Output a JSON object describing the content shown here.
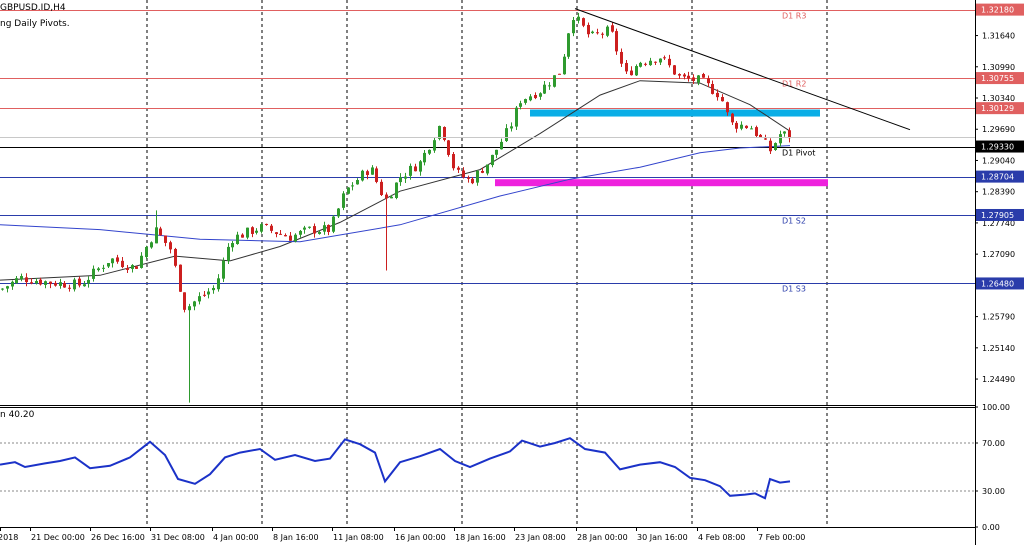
{
  "info": {
    "symbol": "GBPUSD.ID,H4",
    "indicator": "ng Daily Pivots.",
    "rsi_label": "n 40.20"
  },
  "colors": {
    "background": "#ffffff",
    "bull_candle": "#2e9a2e",
    "bear_candle": "#cc1f1f",
    "resistance": "#e06060",
    "support": "#2a3caa",
    "pivot": "#000000",
    "ma_fast": "#333333",
    "ma_slow": "#3344cc",
    "rsi_line": "#1b32c8",
    "zone_resistance": "#0aaee6",
    "zone_support": "#ee22dd",
    "grid": "#000000",
    "trendline": "#000000",
    "label_box": "#000000"
  },
  "chart_data": [
    {
      "type": "candlestick",
      "title": "GBPUSD.ID,H4",
      "ylim": [
        1.2395,
        1.3238
      ],
      "y_ticks": [
        "1.32180",
        "1.31640",
        "1.30990",
        "1.30340",
        "1.29690",
        "1.29040",
        "1.28390",
        "1.27740",
        "1.27090",
        "1.26440",
        "1.25790",
        "1.25140",
        "1.24490"
      ],
      "x_ticks": [
        "2018",
        "21 Dec 00:00",
        "26 Dec 16:00",
        "31 Dec 08:00",
        "4 Jan 00:00",
        "8 Jan 16:00",
        "11 Jan 08:00",
        "16 Jan 00:00",
        "18 Jan 16:00",
        "23 Jan 08:00",
        "28 Jan 00:00",
        "30 Jan 16:00",
        "4 Feb 08:00",
        "7 Feb 00:00"
      ],
      "grid": "vertical dashed at period separators",
      "price_key": [
        [
          0,
          1.2635
        ],
        [
          20,
          1.266
        ],
        [
          50,
          1.265
        ],
        [
          80,
          1.2645
        ],
        [
          110,
          1.27
        ],
        [
          135,
          1.268
        ],
        [
          155,
          1.276
        ],
        [
          170,
          1.272
        ],
        [
          185,
          1.2595
        ],
        [
          200,
          1.262
        ],
        [
          215,
          1.264
        ],
        [
          230,
          1.274
        ],
        [
          260,
          1.2765
        ],
        [
          290,
          1.2745
        ],
        [
          310,
          1.276
        ],
        [
          330,
          1.276
        ],
        [
          345,
          1.284
        ],
        [
          370,
          1.289
        ],
        [
          385,
          1.282
        ],
        [
          400,
          1.287
        ],
        [
          420,
          1.29
        ],
        [
          440,
          1.298
        ],
        [
          455,
          1.288
        ],
        [
          470,
          1.286
        ],
        [
          490,
          1.2905
        ],
        [
          510,
          1.2975
        ],
        [
          520,
          1.303
        ],
        [
          540,
          1.305
        ],
        [
          560,
          1.309
        ],
        [
          572,
          1.321
        ],
        [
          590,
          1.316
        ],
        [
          610,
          1.3175
        ],
        [
          625,
          1.308
        ],
        [
          640,
          1.311
        ],
        [
          660,
          1.312
        ],
        [
          680,
          1.3075
        ],
        [
          700,
          1.307
        ],
        [
          720,
          1.304
        ],
        [
          730,
          1.298
        ],
        [
          750,
          1.2975
        ],
        [
          770,
          1.2925
        ],
        [
          780,
          1.296
        ],
        [
          790,
          1.2955
        ]
      ],
      "moving_averages": [
        {
          "name": "MA fast",
          "color": "#333333",
          "points": [
            [
              0,
              1.2655
            ],
            [
              100,
              1.2665
            ],
            [
              175,
              1.2705
            ],
            [
              230,
              1.2695
            ],
            [
              280,
              1.2725
            ],
            [
              340,
              1.2775
            ],
            [
              400,
              1.284
            ],
            [
              480,
              1.2885
            ],
            [
              540,
              1.296
            ],
            [
              600,
              1.304
            ],
            [
              640,
              1.307
            ],
            [
              700,
              1.3065
            ],
            [
              750,
              1.302
            ],
            [
              790,
              1.2965
            ]
          ]
        },
        {
          "name": "MA slow",
          "color": "#3344cc",
          "points": [
            [
              0,
              1.277
            ],
            [
              100,
              1.276
            ],
            [
              200,
              1.274
            ],
            [
              300,
              1.2735
            ],
            [
              400,
              1.277
            ],
            [
              500,
              1.283
            ],
            [
              570,
              1.2865
            ],
            [
              640,
              1.289
            ],
            [
              700,
              1.292
            ],
            [
              740,
              1.293
            ],
            [
              790,
              1.2935
            ]
          ]
        }
      ],
      "levels": [
        {
          "label": "D1 R3",
          "value": 1.3218,
          "badge": "1.32180",
          "color": "#e06060"
        },
        {
          "label": "D1 R2",
          "value": 1.30755,
          "badge": "1.30755",
          "color": "#e06060"
        },
        {
          "label": "D1 R1",
          "value": 1.30129,
          "badge": "1.30129",
          "color": "#e06060"
        },
        {
          "label": "D1 Pivot",
          "value": 1.2933,
          "badge": "1.29330",
          "color": "#000000"
        },
        {
          "label": "D1 S1",
          "value": 1.28704,
          "badge": "1.28704",
          "color": "#2a3caa"
        },
        {
          "label": "D1 S2",
          "value": 1.27905,
          "badge": "1.27905",
          "color": "#2a3caa"
        },
        {
          "label": "D1 S3",
          "value": 1.2648,
          "badge": "1.26480",
          "color": "#2a3caa"
        }
      ],
      "zones": [
        {
          "name": "resistance zone",
          "from": 1.3,
          "to": 1.301,
          "x_start": 530,
          "x_end": 820,
          "color": "#0aaee6"
        },
        {
          "name": "support zone",
          "from": 1.2855,
          "to": 1.2865,
          "x_start": 495,
          "x_end": 828,
          "color": "#ee22dd"
        }
      ],
      "trendline": {
        "from": [
          575,
          1.322
        ],
        "to": [
          910,
          1.2968
        ]
      },
      "current_price": 1.2952
    },
    {
      "type": "line",
      "title": "RSI",
      "ylim": [
        0,
        100
      ],
      "y_ticks": [
        "100.00",
        "70.00",
        "30.00",
        "0.00"
      ],
      "levels": [
        70,
        30
      ],
      "current": 40.2,
      "values": [
        [
          0,
          52
        ],
        [
          15,
          54
        ],
        [
          25,
          50
        ],
        [
          45,
          53
        ],
        [
          60,
          55
        ],
        [
          75,
          58
        ],
        [
          90,
          49
        ],
        [
          110,
          51
        ],
        [
          130,
          58
        ],
        [
          150,
          71
        ],
        [
          165,
          60
        ],
        [
          178,
          40
        ],
        [
          195,
          36
        ],
        [
          210,
          44
        ],
        [
          225,
          58
        ],
        [
          240,
          62
        ],
        [
          260,
          65
        ],
        [
          275,
          56
        ],
        [
          295,
          60
        ],
        [
          315,
          55
        ],
        [
          330,
          57
        ],
        [
          345,
          73
        ],
        [
          360,
          69
        ],
        [
          375,
          62
        ],
        [
          385,
          38
        ],
        [
          400,
          54
        ],
        [
          420,
          59
        ],
        [
          440,
          65
        ],
        [
          455,
          55
        ],
        [
          470,
          50
        ],
        [
          490,
          57
        ],
        [
          510,
          63
        ],
        [
          522,
          72
        ],
        [
          540,
          67
        ],
        [
          555,
          70
        ],
        [
          570,
          74
        ],
        [
          585,
          65
        ],
        [
          605,
          62
        ],
        [
          620,
          48
        ],
        [
          640,
          52
        ],
        [
          660,
          54
        ],
        [
          675,
          50
        ],
        [
          690,
          41
        ],
        [
          705,
          39
        ],
        [
          720,
          34
        ],
        [
          730,
          26
        ],
        [
          745,
          27
        ],
        [
          755,
          28
        ],
        [
          765,
          24
        ],
        [
          770,
          40
        ],
        [
          780,
          37
        ],
        [
          790,
          38
        ]
      ]
    }
  ]
}
